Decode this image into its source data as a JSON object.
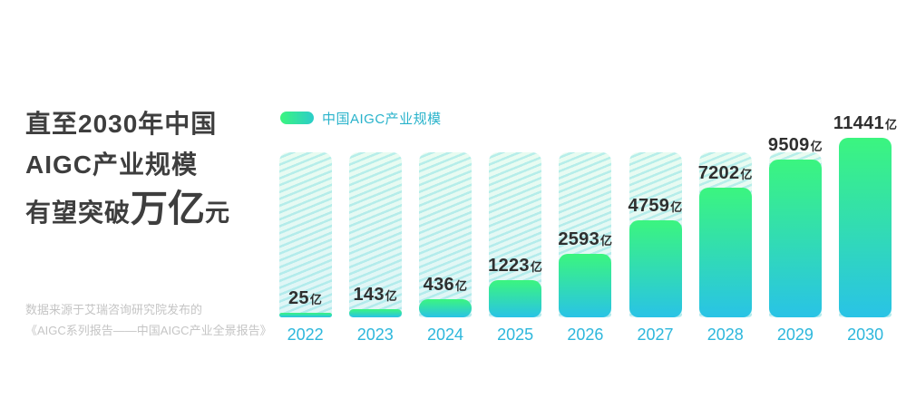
{
  "headline": {
    "line1": "直至2030年中国",
    "line2": "AIGC产业规模",
    "line3_prefix": "有望突破",
    "line3_highlight": "万亿",
    "line3_suffix": "元"
  },
  "source": {
    "line1": "数据来源于艾瑞咨询研究院发布的",
    "line2": "《AIGC系列报告——中国AIGC产业全景报告》"
  },
  "chart_data": {
    "type": "bar",
    "legend": "中国AIGC产业规模",
    "categories": [
      "2022",
      "2023",
      "2024",
      "2025",
      "2026",
      "2027",
      "2028",
      "2029",
      "2030"
    ],
    "values": [
      25,
      143,
      436,
      1223,
      2593,
      4759,
      7202,
      9509,
      11441
    ],
    "unit": "亿",
    "ylim": [
      0,
      11441
    ],
    "grid": false,
    "legend_position": "top-left",
    "placeholder_bars": true,
    "value_labels": [
      "25亿",
      "143亿",
      "436亿",
      "1223亿",
      "2593亿",
      "4759亿",
      "7202亿",
      "9509亿",
      "11441亿"
    ]
  },
  "colors": {
    "bar_top": "#3bf57f",
    "bar_bottom": "#29c3e6",
    "legend_swatch_end": "#2bcdc9",
    "hatch_bg_top": "#e9fcf1",
    "hatch_bg_bottom": "#def5f7",
    "hatch_stripe": "#b7e9e9",
    "year_label": "#2db7dc",
    "legend_text": "#29b3cb",
    "title_text": "#3e3e3e",
    "source_text": "#c5c5c5",
    "value_text": "#2f2f2f"
  }
}
